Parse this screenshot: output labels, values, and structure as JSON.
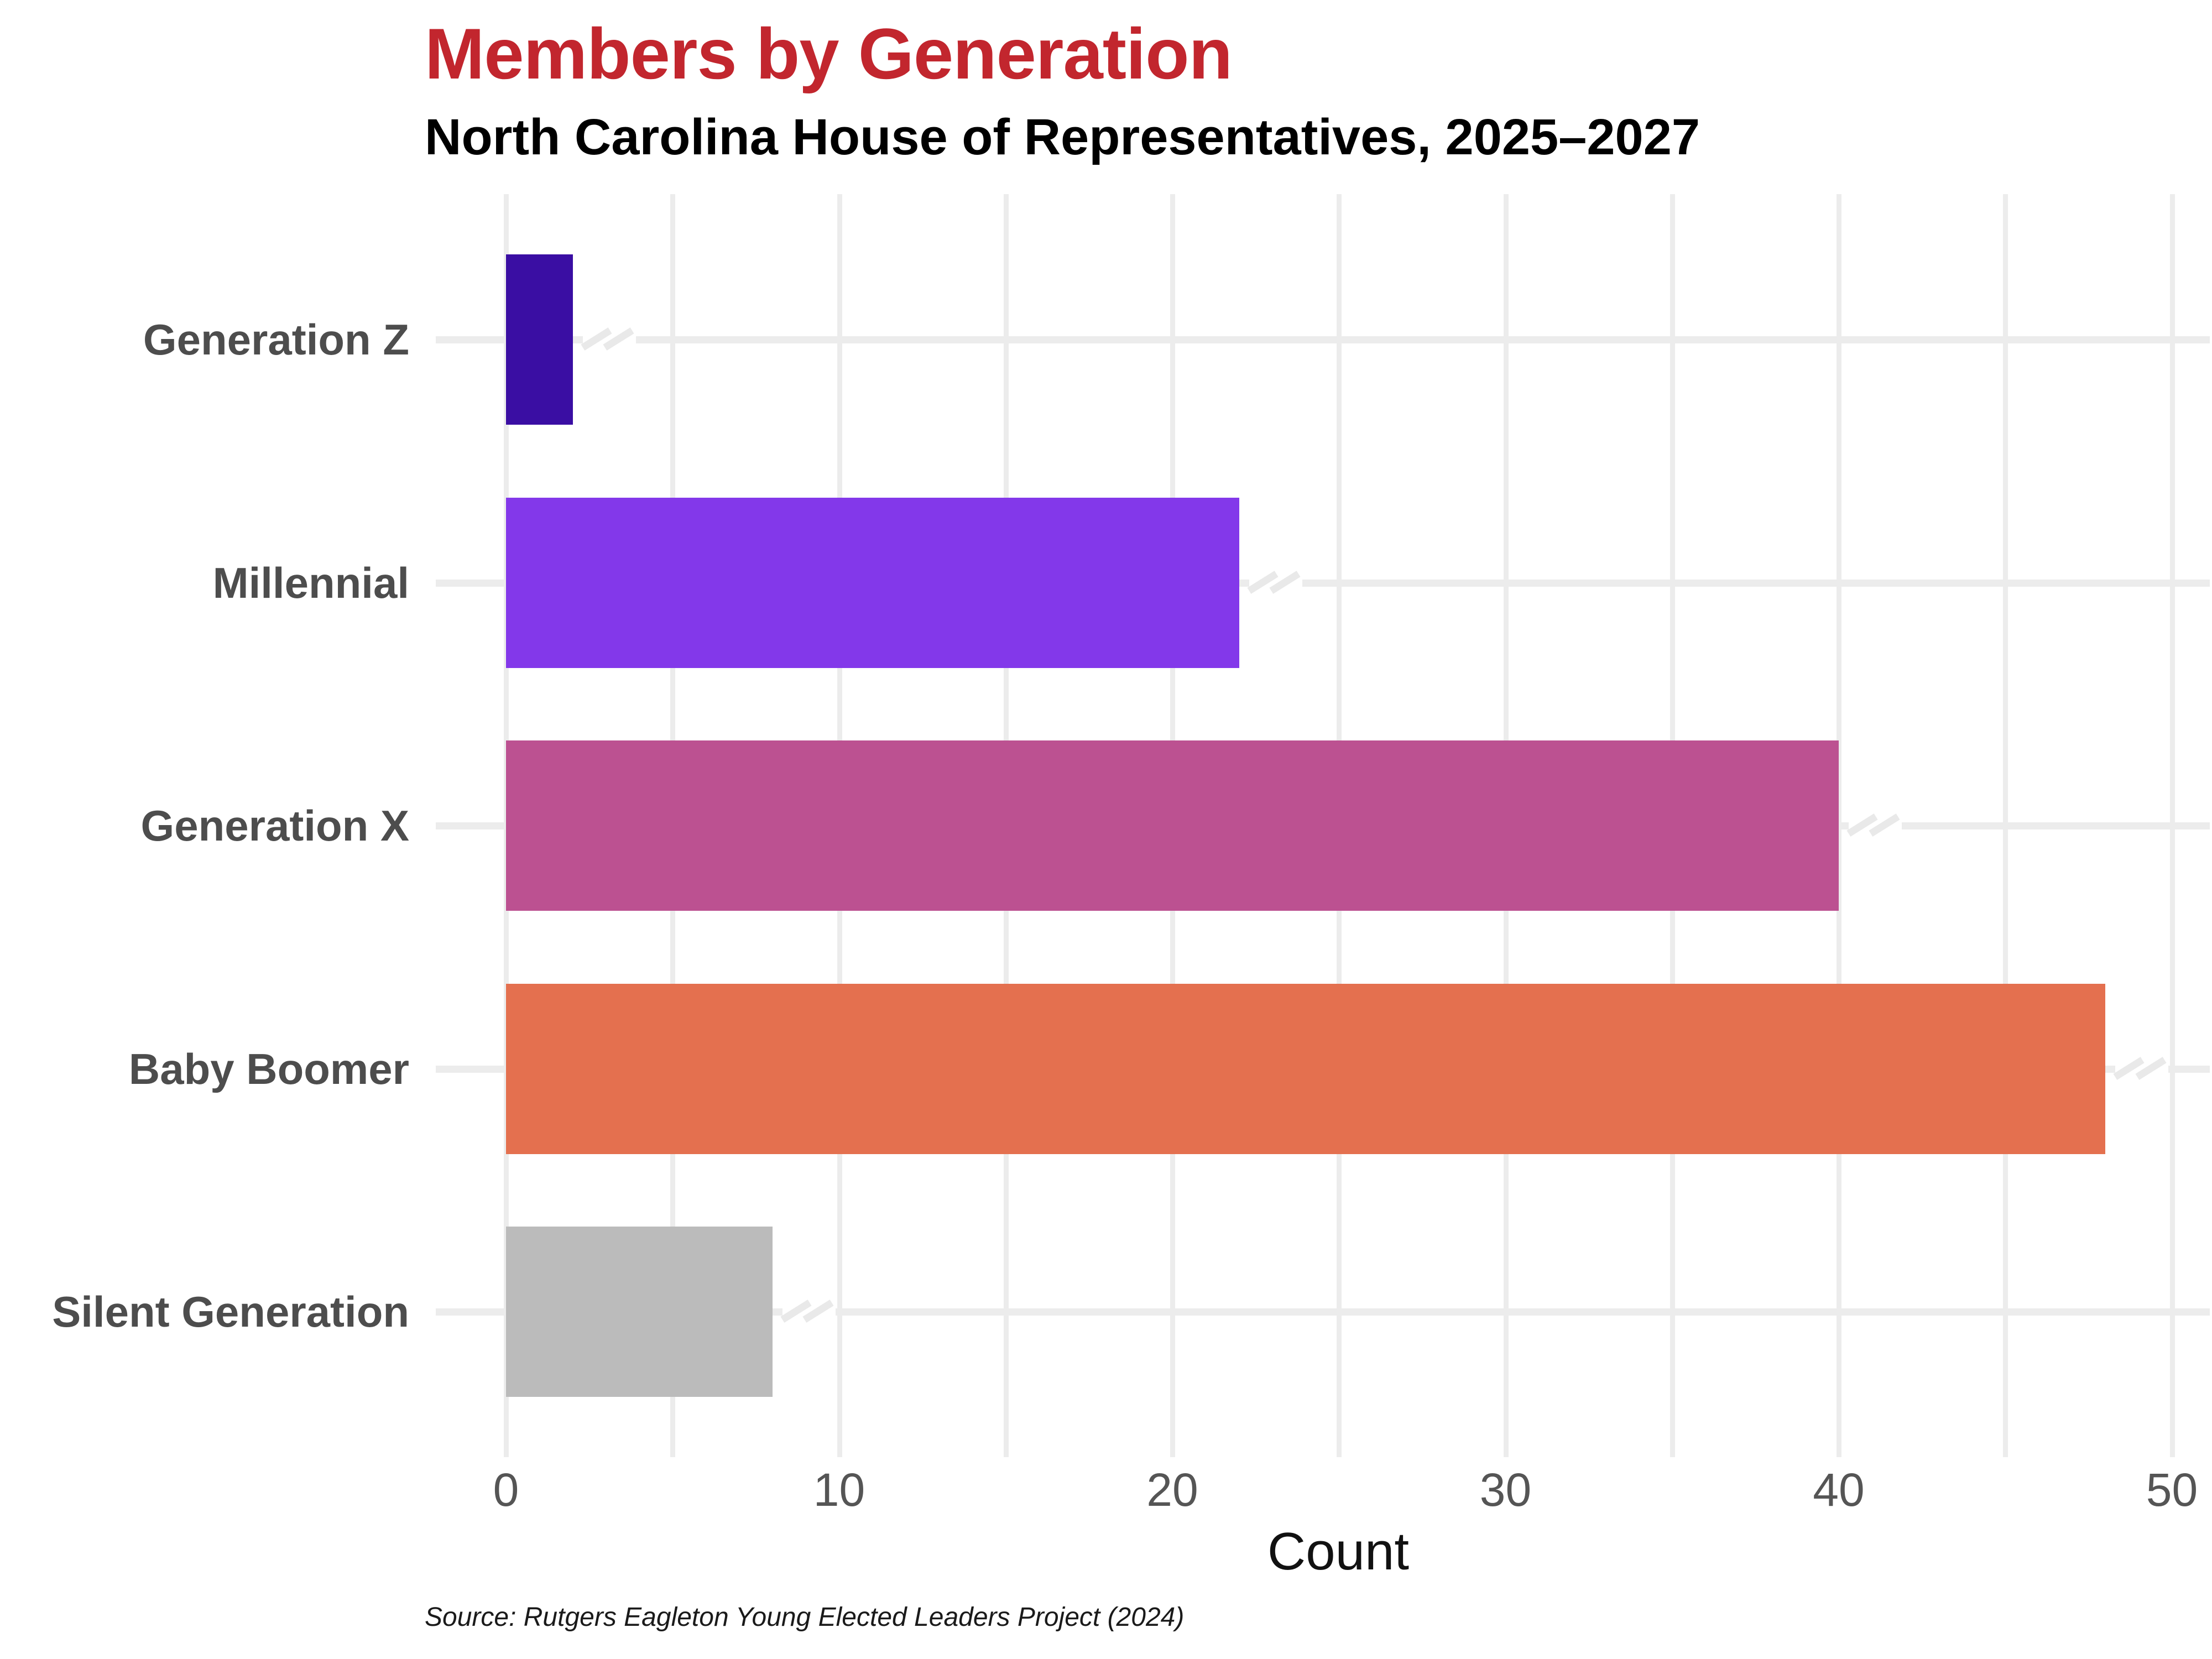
{
  "chart_data": {
    "type": "bar",
    "orientation": "horizontal",
    "title": "Members by Generation",
    "subtitle": "North Carolina House of Representatives, 2025–2027",
    "xlabel": "Count",
    "source_note": "Source: Rutgers Eagleton Young Elected Leaders Project (2024)",
    "categories": [
      "Generation Z",
      "Millennial",
      "Generation X",
      "Baby Boomer",
      "Silent Generation"
    ],
    "values": [
      2,
      22,
      40,
      48,
      8
    ],
    "bar_colors": [
      "#3A0EA3",
      "#8338EA",
      "#BC5191",
      "#E4704F",
      "#BBBBBB"
    ],
    "xlim": [
      0,
      50
    ],
    "x_ticks": [
      0,
      10,
      20,
      30,
      40,
      50
    ],
    "grid": {
      "vertical_every": 5,
      "horizontal_row_lines": true
    },
    "legend": "none"
  },
  "colors": {
    "title": "#C2262E",
    "subtitle": "#000000",
    "category_label": "#4D4D4D",
    "tick_label": "#555555",
    "axis_label": "#111111",
    "source": "#1A1A1A",
    "gridline": "#ECECEC",
    "background": "#FFFFFF"
  }
}
